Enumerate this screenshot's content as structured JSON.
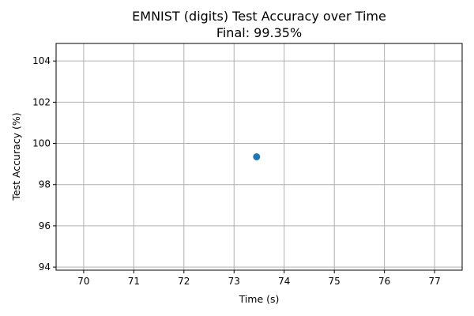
{
  "chart_data": {
    "type": "scatter",
    "title_line1": "EMNIST (digits) Test Accuracy over Time",
    "title_line2": "Final: 99.35%",
    "xlabel": "Time (s)",
    "ylabel": "Test Accuracy (%)",
    "xlim": [
      69.45,
      77.55
    ],
    "ylim": [
      93.85,
      104.85
    ],
    "x_ticks": [
      70,
      71,
      72,
      73,
      74,
      75,
      76,
      77
    ],
    "y_ticks": [
      94,
      96,
      98,
      100,
      102,
      104
    ],
    "grid": true,
    "point_color": "#1f77b4",
    "points": [
      {
        "x": 73.45,
        "y": 99.35
      }
    ]
  }
}
